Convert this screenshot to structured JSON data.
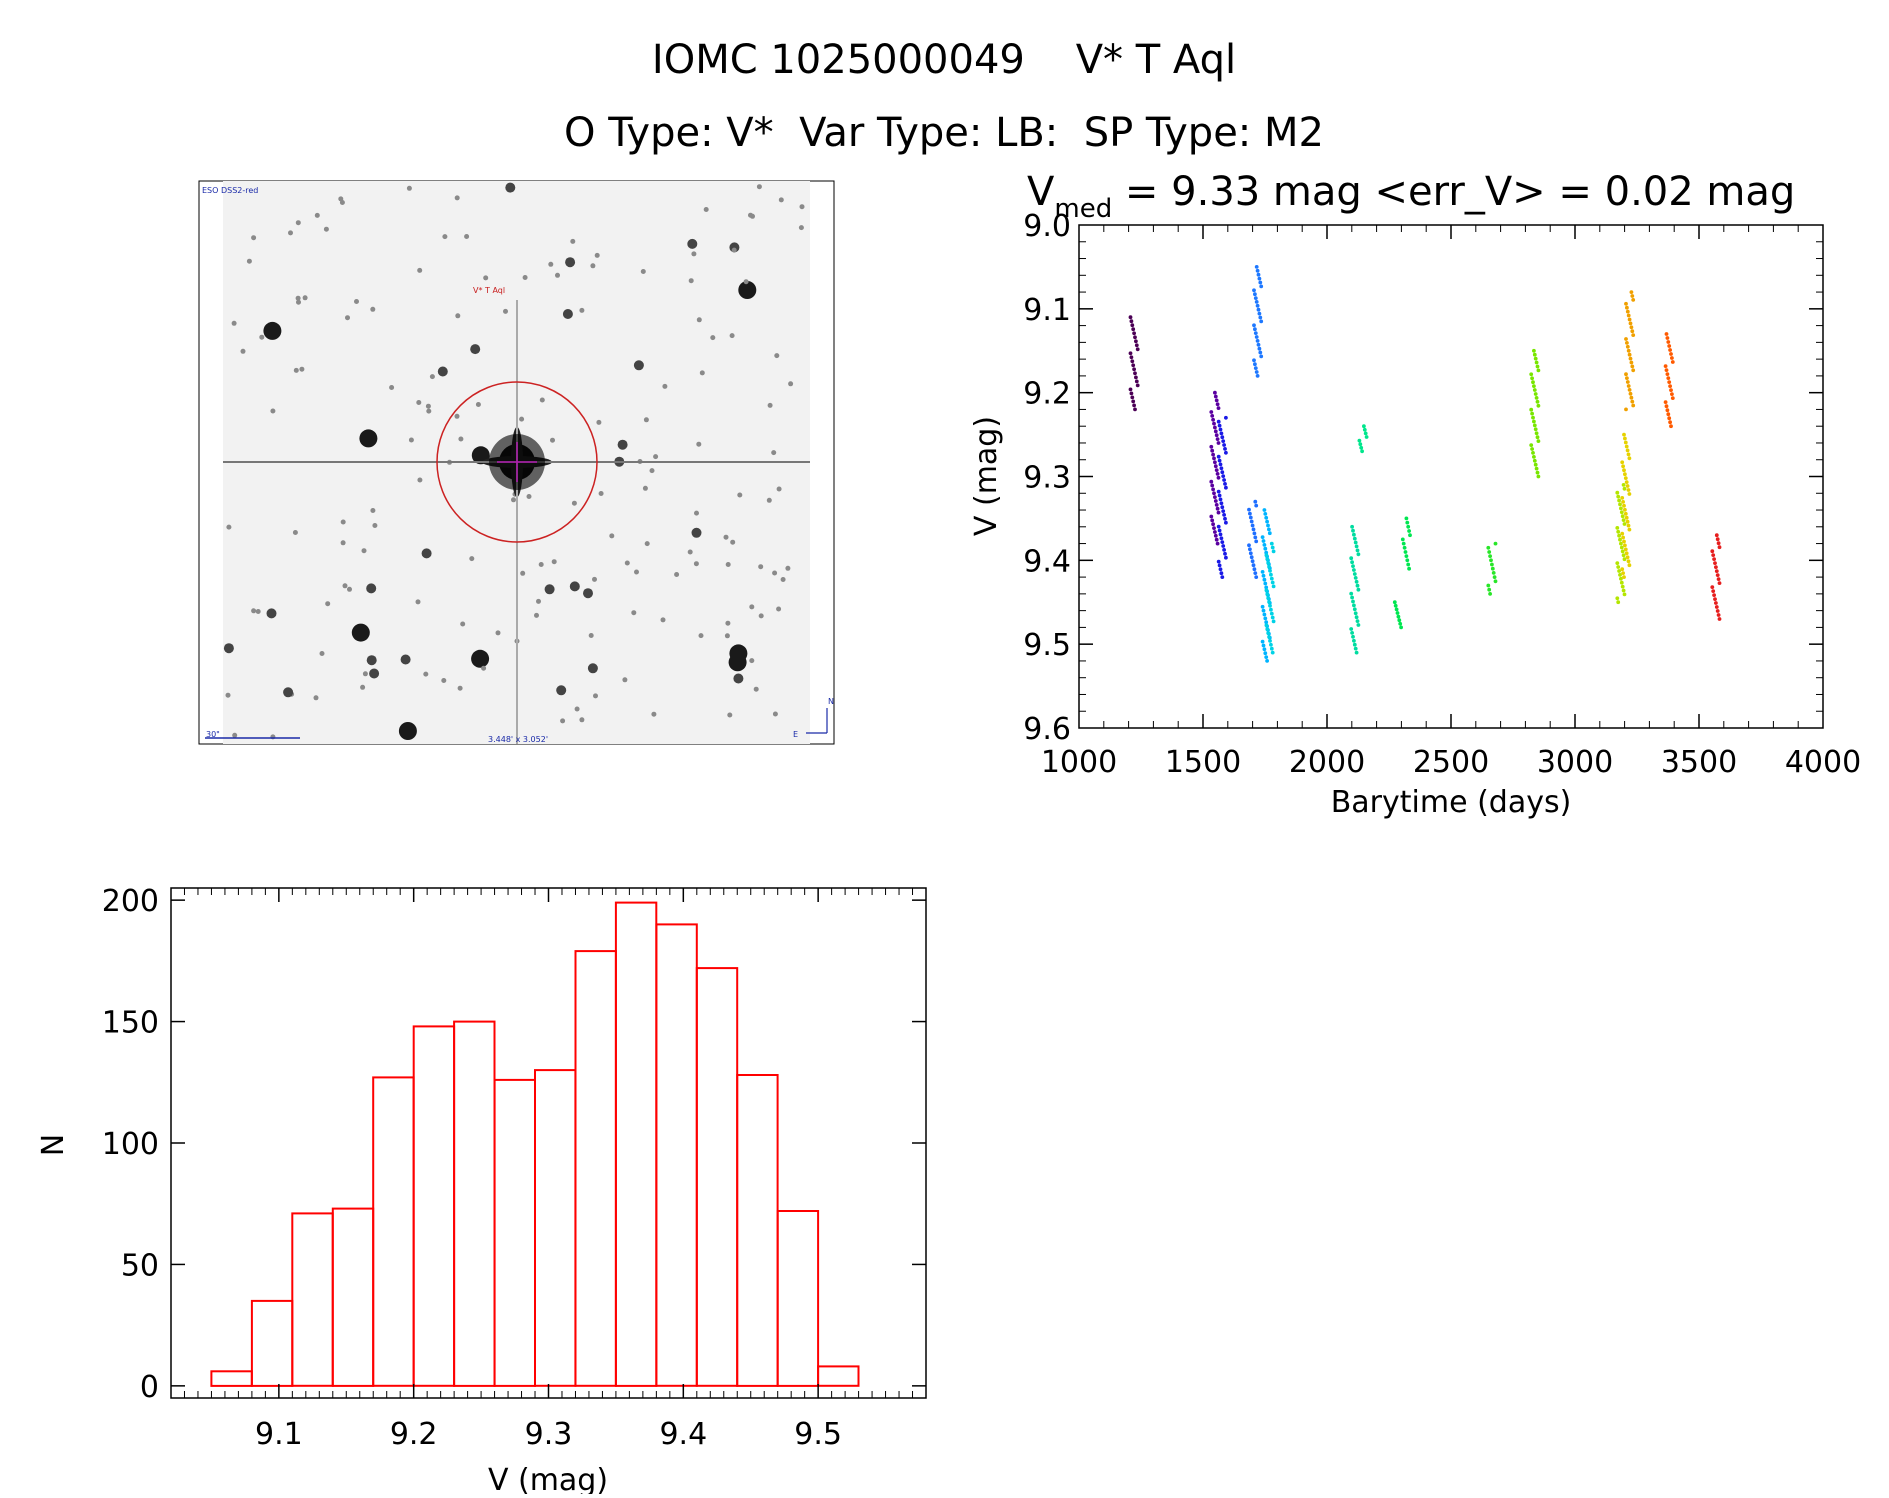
{
  "header": {
    "title": "IOMC 1025000049    V* T Aql",
    "subtitle": "O Type: V*  Var Type: LB:  SP Type: M2"
  },
  "finder": {
    "survey_label": "ESO DSS2-red",
    "target_label": "V* T Aql",
    "scale_label": "30\"",
    "fov_label": "3.448' x 3.052'",
    "north_label": "N",
    "east_label": "E"
  },
  "chart_data": [
    {
      "type": "scatter",
      "title": "V",
      "title_sub": "med",
      "title_rest": " = 9.33 mag <err_V> = 0.02 mag",
      "xlabel": "Barytime (days)",
      "ylabel": "V (mag)",
      "xlim": [
        1000,
        4000
      ],
      "ylim": [
        9.0,
        9.6
      ],
      "y_inverted": true,
      "xticks": [
        "1000",
        "1500",
        "2000",
        "2500",
        "3000",
        "3500",
        "4000"
      ],
      "yticks": [
        "9.0",
        "9.1",
        "9.2",
        "9.3",
        "9.4",
        "9.5",
        "9.6"
      ],
      "series": [
        {
          "x": 1222,
          "y_min": 9.11,
          "y_max": 9.22,
          "color": "#4b0055"
        },
        {
          "x": 1548,
          "y_min": 9.2,
          "y_max": 9.38,
          "color": "#5a00a0"
        },
        {
          "x": 1578,
          "y_min": 9.23,
          "y_max": 9.42,
          "color": "#1a1ae6"
        },
        {
          "x": 1720,
          "y_min": 9.05,
          "y_max": 9.18,
          "color": "#1e78ff"
        },
        {
          "x": 1700,
          "y_min": 9.33,
          "y_max": 9.42,
          "color": "#1e6eff"
        },
        {
          "x": 1755,
          "y_min": 9.34,
          "y_max": 9.52,
          "color": "#00b4ff"
        },
        {
          "x": 1770,
          "y_min": 9.38,
          "y_max": 9.51,
          "color": "#00d2e6"
        },
        {
          "x": 2112,
          "y_min": 9.36,
          "y_max": 9.51,
          "color": "#00dca0"
        },
        {
          "x": 2145,
          "y_min": 9.24,
          "y_max": 9.27,
          "color": "#00e68c"
        },
        {
          "x": 2288,
          "y_min": 9.45,
          "y_max": 9.48,
          "color": "#00e650"
        },
        {
          "x": 2320,
          "y_min": 9.35,
          "y_max": 9.41,
          "color": "#00e650"
        },
        {
          "x": 2665,
          "y_min": 9.38,
          "y_max": 9.44,
          "color": "#28e628"
        },
        {
          "x": 2838,
          "y_min": 9.15,
          "y_max": 9.3,
          "color": "#78e600"
        },
        {
          "x": 3185,
          "y_min": 9.31,
          "y_max": 9.45,
          "color": "#b4e600"
        },
        {
          "x": 3205,
          "y_min": 9.25,
          "y_max": 9.42,
          "color": "#e6d200"
        },
        {
          "x": 3220,
          "y_min": 9.08,
          "y_max": 9.22,
          "color": "#f0a000"
        },
        {
          "x": 3380,
          "y_min": 9.13,
          "y_max": 9.24,
          "color": "#ff5a00"
        },
        {
          "x": 3568,
          "y_min": 9.37,
          "y_max": 9.47,
          "color": "#e61e1e"
        }
      ]
    },
    {
      "type": "bar",
      "title": "",
      "xlabel": "V (mag)",
      "ylabel": "N",
      "xlim": [
        9.02,
        9.58
      ],
      "ylim": [
        -5,
        205
      ],
      "xticks": [
        "9.1",
        "9.2",
        "9.3",
        "9.4",
        "9.5"
      ],
      "yticks": [
        "0",
        "50",
        "100",
        "150",
        "200"
      ],
      "bin_width": 0.03,
      "bin_start": [
        9.05,
        9.08,
        9.11,
        9.14,
        9.17,
        9.2,
        9.23,
        9.26,
        9.29,
        9.32,
        9.35,
        9.38,
        9.41,
        9.44,
        9.47,
        9.5
      ],
      "values": [
        6,
        35,
        71,
        73,
        127,
        148,
        150,
        126,
        130,
        179,
        199,
        190,
        172,
        128,
        72,
        8
      ],
      "bar_color": "#ff0000"
    }
  ]
}
